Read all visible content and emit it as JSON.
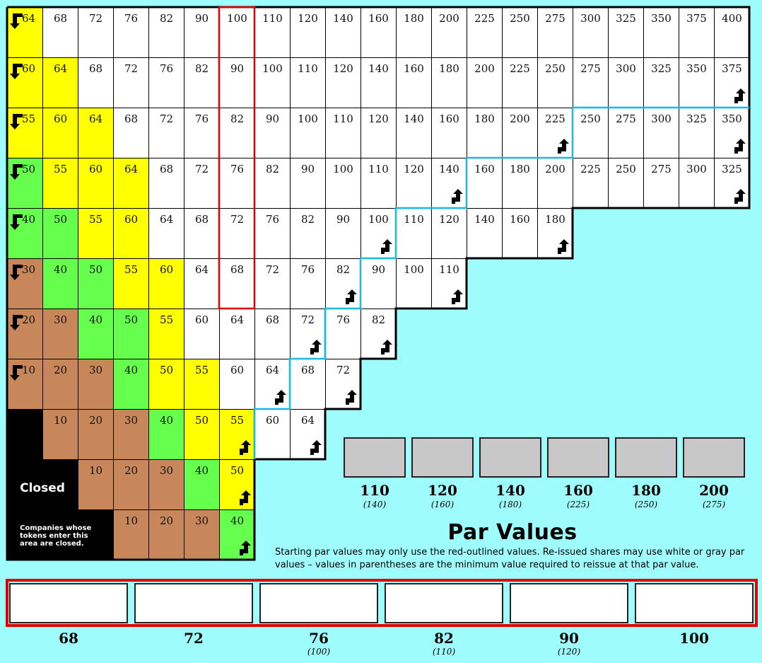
{
  "market": {
    "rows": [
      {
        "values": [
          "64",
          "68",
          "72",
          "76",
          "82",
          "90",
          "100",
          "110",
          "120",
          "140",
          "160",
          "180",
          "200",
          "225",
          "250",
          "275",
          "300",
          "325",
          "350",
          "375",
          "400"
        ],
        "colors": [
          "yellow",
          "white",
          "white",
          "white",
          "white",
          "white",
          "white",
          "white",
          "white",
          "white",
          "white",
          "white",
          "white",
          "white",
          "white",
          "white",
          "white",
          "white",
          "white",
          "white",
          "white"
        ]
      },
      {
        "values": [
          "60",
          "64",
          "68",
          "72",
          "76",
          "82",
          "90",
          "100",
          "110",
          "120",
          "140",
          "160",
          "180",
          "200",
          "225",
          "250",
          "275",
          "300",
          "325",
          "350",
          "375"
        ],
        "colors": [
          "yellow",
          "yellow",
          "white",
          "white",
          "white",
          "white",
          "white",
          "white",
          "white",
          "white",
          "white",
          "white",
          "white",
          "white",
          "white",
          "white",
          "white",
          "white",
          "white",
          "white",
          "white"
        ]
      },
      {
        "values": [
          "55",
          "60",
          "64",
          "68",
          "72",
          "76",
          "82",
          "90",
          "100",
          "110",
          "120",
          "140",
          "160",
          "180",
          "200",
          "225",
          "250",
          "275",
          "300",
          "325",
          "350"
        ],
        "colors": [
          "yellow",
          "yellow",
          "yellow",
          "white",
          "white",
          "white",
          "white",
          "white",
          "white",
          "white",
          "white",
          "white",
          "white",
          "white",
          "white",
          "white",
          "white",
          "white",
          "white",
          "white",
          "white"
        ]
      },
      {
        "values": [
          "50",
          "55",
          "60",
          "64",
          "68",
          "72",
          "76",
          "82",
          "90",
          "100",
          "110",
          "120",
          "140",
          "160",
          "180",
          "200",
          "225",
          "250",
          "275",
          "300",
          "325"
        ],
        "colors": [
          "green",
          "yellow",
          "yellow",
          "yellow",
          "white",
          "white",
          "white",
          "white",
          "white",
          "white",
          "white",
          "white",
          "white",
          "white",
          "white",
          "white",
          "white",
          "white",
          "white",
          "white",
          "white"
        ]
      },
      {
        "values": [
          "40",
          "50",
          "55",
          "60",
          "64",
          "68",
          "72",
          "76",
          "82",
          "90",
          "100",
          "110",
          "120",
          "140",
          "160",
          "180"
        ],
        "colors": [
          "green",
          "green",
          "yellow",
          "yellow",
          "white",
          "white",
          "white",
          "white",
          "white",
          "white",
          "white",
          "white",
          "white",
          "white",
          "white",
          "white"
        ]
      },
      {
        "values": [
          "30",
          "40",
          "50",
          "55",
          "60",
          "64",
          "68",
          "72",
          "76",
          "82",
          "90",
          "100",
          "110"
        ],
        "colors": [
          "brown",
          "green",
          "green",
          "yellow",
          "yellow",
          "white",
          "white",
          "white",
          "white",
          "white",
          "white",
          "white",
          "white"
        ]
      },
      {
        "values": [
          "20",
          "30",
          "40",
          "50",
          "55",
          "60",
          "64",
          "68",
          "72",
          "76",
          "82"
        ],
        "colors": [
          "brown",
          "brown",
          "green",
          "green",
          "yellow",
          "white",
          "white",
          "white",
          "white",
          "white",
          "white"
        ]
      },
      {
        "values": [
          "10",
          "20",
          "30",
          "40",
          "50",
          "55",
          "60",
          "64",
          "68",
          "72"
        ],
        "colors": [
          "brown",
          "brown",
          "brown",
          "green",
          "yellow",
          "yellow",
          "white",
          "white",
          "white",
          "white"
        ]
      },
      {
        "values": [
          "",
          "10",
          "20",
          "30",
          "40",
          "50",
          "55",
          "60",
          "64"
        ],
        "colors": [
          "black",
          "brown",
          "brown",
          "brown",
          "green",
          "yellow",
          "yellow",
          "white",
          "white"
        ]
      },
      {
        "values": [
          "",
          "",
          "10",
          "20",
          "30",
          "40",
          "50"
        ],
        "colors": [
          "black",
          "black",
          "brown",
          "brown",
          "brown",
          "green",
          "yellow"
        ]
      },
      {
        "values": [
          "",
          "",
          "",
          "10",
          "20",
          "30",
          "40"
        ],
        "colors": [
          "black",
          "black",
          "black",
          "brown",
          "brown",
          "brown",
          "green"
        ]
      }
    ],
    "up_arrows": [
      [
        1,
        20
      ],
      [
        2,
        15
      ],
      [
        2,
        20
      ],
      [
        3,
        12
      ],
      [
        3,
        20
      ],
      [
        4,
        10
      ],
      [
        4,
        15
      ],
      [
        5,
        9
      ],
      [
        5,
        12
      ],
      [
        6,
        8
      ],
      [
        6,
        10
      ],
      [
        7,
        7
      ],
      [
        7,
        9
      ],
      [
        8,
        6
      ],
      [
        8,
        8
      ],
      [
        9,
        6
      ],
      [
        10,
        6
      ]
    ],
    "down_arrows": [
      0,
      1,
      2,
      3,
      4,
      5,
      6,
      7
    ],
    "colors": {
      "white": "#ffffff",
      "yellow": "#ffff00",
      "green": "#66ff4d",
      "brown": "#c8875a",
      "black": "#000000",
      "background": "#9ffcfc",
      "red_outline": "#e00000",
      "blue_line": "#19b8e6"
    }
  },
  "closed": {
    "label": "Closed",
    "note": "Companies whose tokens enter this area are closed."
  },
  "par": {
    "title": "Par Values",
    "description": "Starting par values may only use the red-outlined values.  Re-issued shares may use white or gray par values – values in parentheses are the minimum value required to reissue at that par value.",
    "gray": [
      {
        "value": "110",
        "min": "(140)"
      },
      {
        "value": "120",
        "min": "(160)"
      },
      {
        "value": "140",
        "min": "(180)"
      },
      {
        "value": "160",
        "min": "(225)"
      },
      {
        "value": "180",
        "min": "(250)"
      },
      {
        "value": "200",
        "min": "(275)"
      }
    ],
    "white": [
      {
        "value": "68",
        "min": ""
      },
      {
        "value": "72",
        "min": ""
      },
      {
        "value": "76",
        "min": "(100)"
      },
      {
        "value": "82",
        "min": "(110)"
      },
      {
        "value": "90",
        "min": "(120)"
      },
      {
        "value": "100",
        "min": ""
      }
    ]
  }
}
